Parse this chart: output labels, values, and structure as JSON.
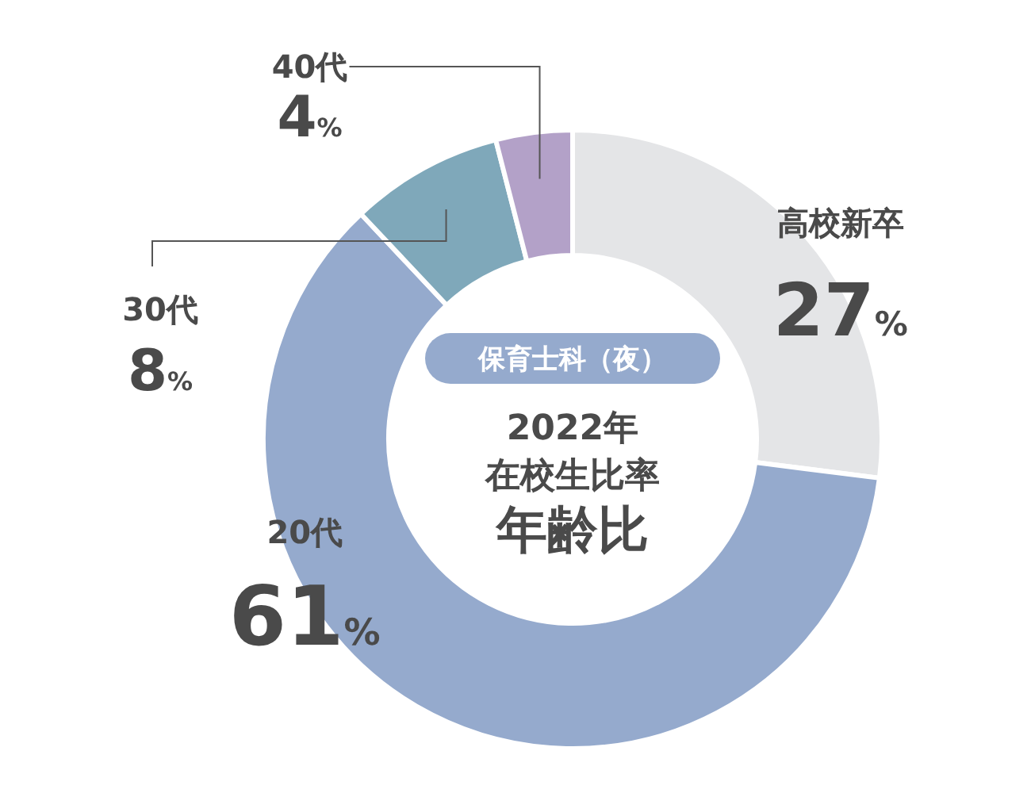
{
  "chart_data": {
    "type": "donut",
    "title": "保育士科（夜）",
    "annotations": [
      "2022年",
      "在校生比率",
      "年齢比"
    ],
    "categories": [
      "高校新卒",
      "20代",
      "30代",
      "40代"
    ],
    "values": [
      27,
      61,
      8,
      4
    ],
    "colors": [
      "#e4e5e7",
      "#95aacd",
      "#7fa8ba",
      "#b3a1c8"
    ],
    "value_labels": [
      "27%",
      "61%",
      "8%",
      "4%"
    ]
  }
}
